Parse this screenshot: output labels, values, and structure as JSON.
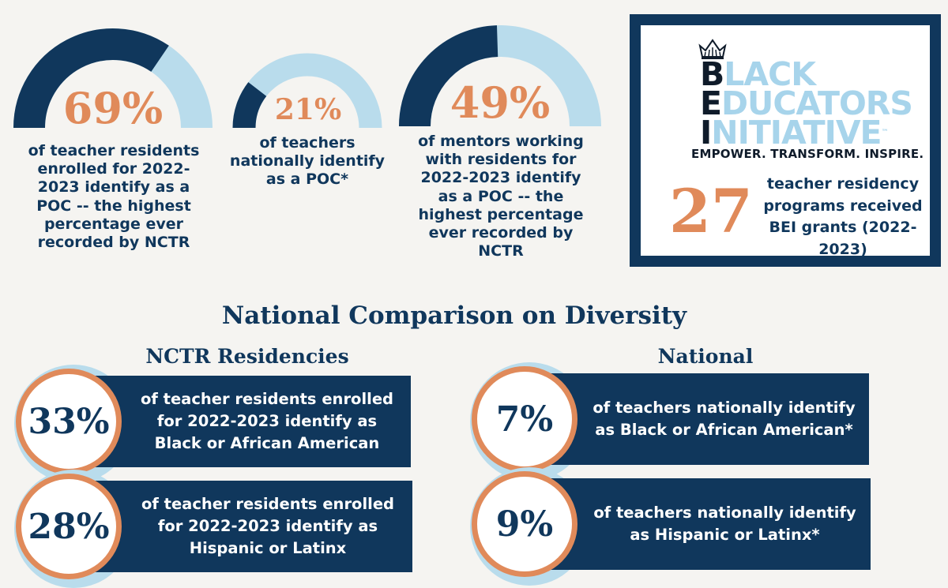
{
  "top_stats": [
    {
      "percent_label": "69%",
      "value": 69,
      "description": "of teacher residents enrolled for 2022-2023 identify as a POC -- the highest percentage ever recorded by NCTR"
    },
    {
      "percent_label": "21%",
      "value": 21,
      "description": "of teachers nationally identify as a POC*"
    },
    {
      "percent_label": "49%",
      "value": 49,
      "description": "of mentors working with residents for 2022-2023 identify as a POC -- the highest percentage ever recorded by NCTR"
    }
  ],
  "bei": {
    "logo_letters": [
      "B",
      "E",
      "I"
    ],
    "logo_rest": [
      "LACK",
      "DUCATORS",
      "NITIATIVE"
    ],
    "trademark": "™",
    "tagline": "EMPOWER. TRANSFORM. INSPIRE.",
    "count": "27",
    "count_description": "teacher residency programs received BEI grants (2022-2023)"
  },
  "comparison": {
    "title": "National Comparison on Diversity",
    "nctr": {
      "heading": "NCTR Residencies",
      "cards": [
        {
          "percent_label": "33%",
          "text": "of teacher residents enrolled for 2022-2023 identify as Black or African American"
        },
        {
          "percent_label": "28%",
          "text": "of teacher residents enrolled for 2022-2023 identify as Hispanic or Latinx"
        }
      ]
    },
    "national": {
      "heading": "National",
      "cards": [
        {
          "percent_label": "7%",
          "text": "of teachers nationally identify as Black or African American*"
        },
        {
          "percent_label": "9%",
          "text": "of teachers nationally identify as Hispanic or Latinx*"
        }
      ]
    }
  },
  "colors": {
    "navy": "#10375c",
    "light_blue": "#b9dcec",
    "orange": "#e08a5a",
    "background": "#f5f4f1"
  }
}
